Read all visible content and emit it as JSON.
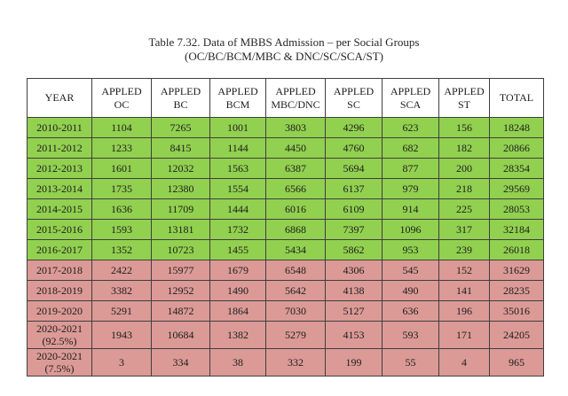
{
  "page": {
    "title_line1": "Table 7.32. Data of MBBS Admission – per Social Groups",
    "title_line2": "(OC/BC/BCM/MBC & DNC/SC/SCA/ST)"
  },
  "colors": {
    "green_row": "#92d050",
    "pink_row": "#db9a96",
    "border": "#3f3f3f",
    "text": "#1d1d1d",
    "background": "#ffffff"
  },
  "chart_data": {
    "type": "table",
    "columns": [
      "YEAR",
      "APPLED\nOC",
      "APPLED\nBC",
      "APPLED\nBCM",
      "APPLED\nMBC/DNC",
      "APPLED\nSC",
      "APPLED\nSCA",
      "APPLED\nST",
      "TOTAL"
    ],
    "rows": [
      {
        "year": "2010-2011",
        "values": [
          1104,
          7265,
          1001,
          3803,
          4296,
          623,
          156,
          18248
        ],
        "band": "green",
        "tall": false
      },
      {
        "year": "2011-2012",
        "values": [
          1233,
          8415,
          1144,
          4450,
          4760,
          682,
          182,
          20866
        ],
        "band": "green",
        "tall": false
      },
      {
        "year": "2012-2013",
        "values": [
          1601,
          12032,
          1563,
          6387,
          5694,
          877,
          200,
          28354
        ],
        "band": "green",
        "tall": false
      },
      {
        "year": "2013-2014",
        "values": [
          1735,
          12380,
          1554,
          6566,
          6137,
          979,
          218,
          29569
        ],
        "band": "green",
        "tall": false
      },
      {
        "year": "2014-2015",
        "values": [
          1636,
          11709,
          1444,
          6016,
          6109,
          914,
          225,
          28053
        ],
        "band": "green",
        "tall": false
      },
      {
        "year": "2015-2016",
        "values": [
          1593,
          13181,
          1732,
          6868,
          7397,
          1096,
          317,
          32184
        ],
        "band": "green",
        "tall": false
      },
      {
        "year": "2016-2017",
        "values": [
          1352,
          10723,
          1455,
          5434,
          5862,
          953,
          239,
          26018
        ],
        "band": "green",
        "tall": false
      },
      {
        "year": "2017-2018",
        "values": [
          2422,
          15977,
          1679,
          6548,
          4306,
          545,
          152,
          31629
        ],
        "band": "pink",
        "tall": false
      },
      {
        "year": "2018-2019",
        "values": [
          3382,
          12952,
          1490,
          5642,
          4138,
          490,
          141,
          28235
        ],
        "band": "pink",
        "tall": false
      },
      {
        "year": "2019-2020",
        "values": [
          5291,
          14872,
          1864,
          7030,
          5127,
          636,
          196,
          35016
        ],
        "band": "pink",
        "tall": false
      },
      {
        "year": "2020-2021\n(92.5%)",
        "values": [
          1943,
          10684,
          1382,
          5279,
          4153,
          593,
          171,
          24205
        ],
        "band": "pink",
        "tall": true
      },
      {
        "year": "2020-2021\n(7.5%)",
        "values": [
          3,
          334,
          38,
          332,
          199,
          55,
          4,
          965
        ],
        "band": "pink",
        "tall": true
      }
    ]
  }
}
